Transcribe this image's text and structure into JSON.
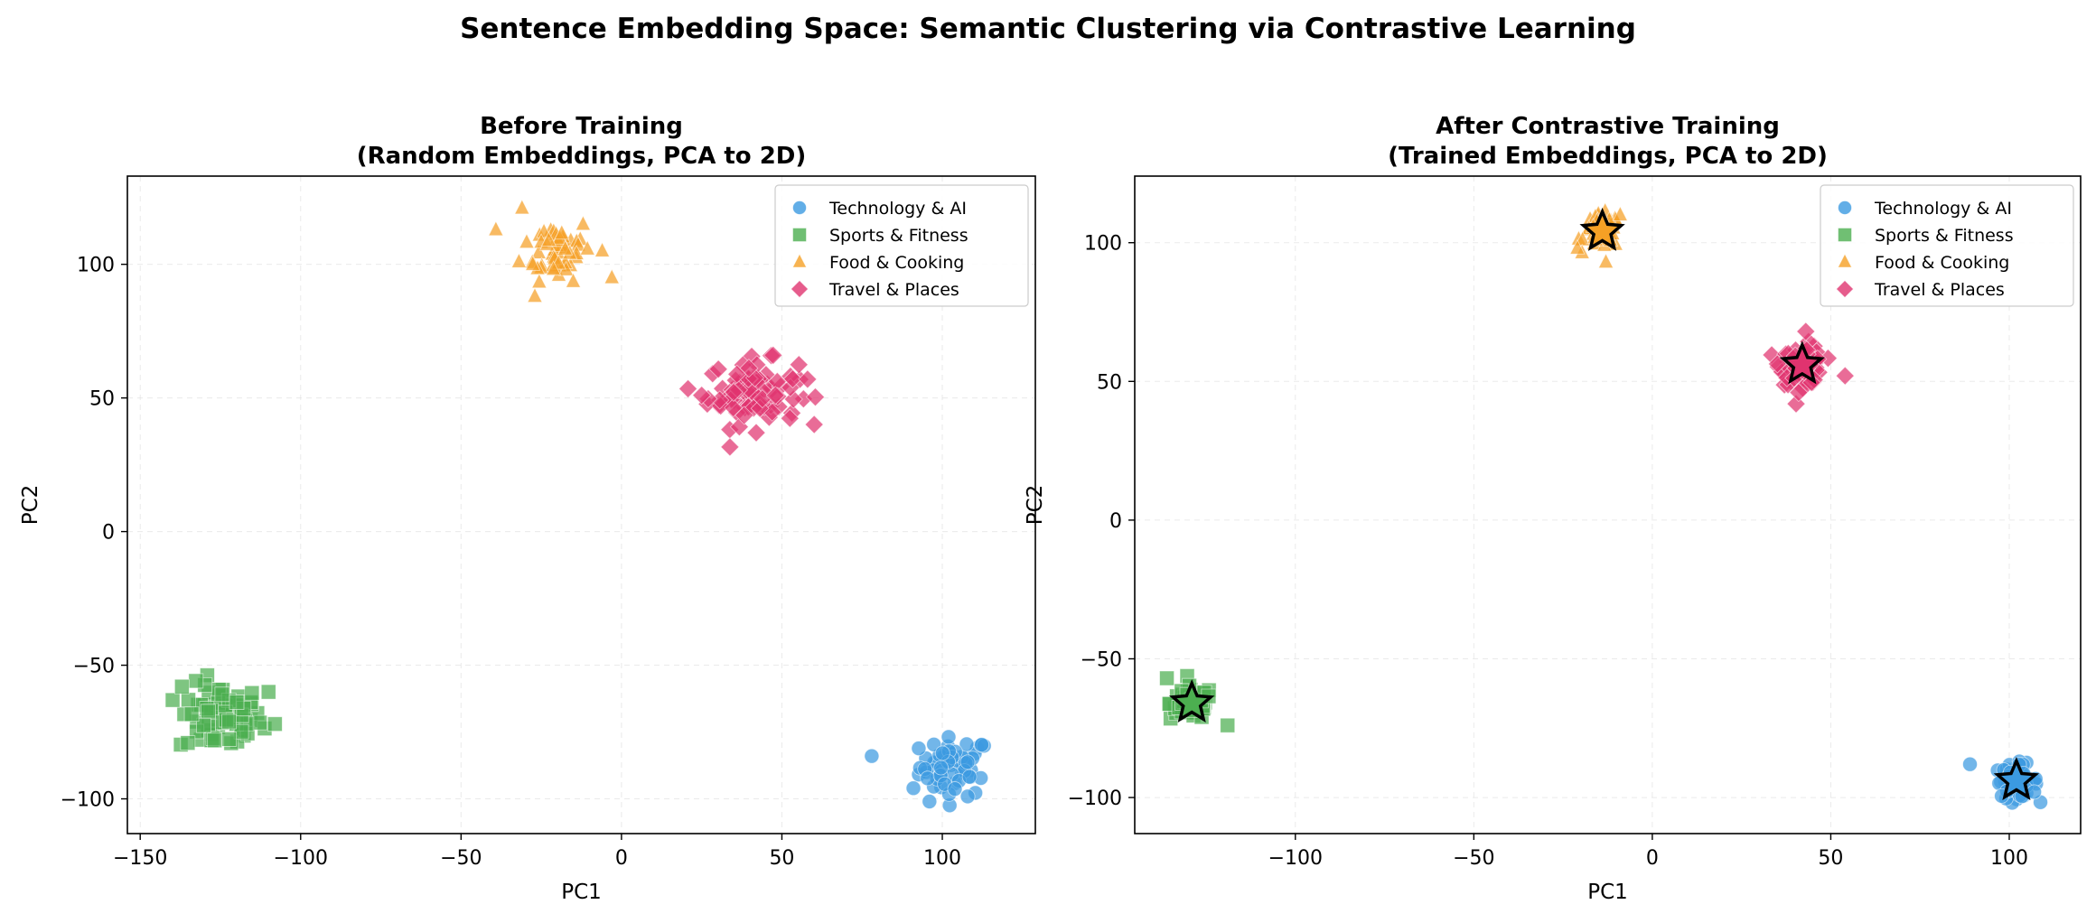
{
  "suptitle": "Sentence Embedding Space: Semantic Clustering via Contrastive Learning",
  "colors": {
    "Technology & AI": "#3b9ae1",
    "Sports & Fitness": "#4caf50",
    "Food & Cooking": "#f5a025",
    "Travel & Places": "#e0336f"
  },
  "chart_data": [
    {
      "type": "scatter",
      "title_line1": "Before Training",
      "title_line2": "(Random Embeddings, PCA to 2D)",
      "xlabel": "PC1",
      "ylabel": "PC2",
      "xlim": [
        -154,
        129
      ],
      "ylim": [
        -113,
        133
      ],
      "xticks": [
        -150,
        -100,
        -50,
        0,
        50,
        100
      ],
      "yticks": [
        -100,
        -50,
        0,
        50,
        100
      ],
      "grid": true,
      "legend_position": "top-right",
      "series": [
        {
          "name": "Technology & AI",
          "marker": "circle",
          "center": [
            104,
            -88
          ],
          "spread": [
            5.5,
            5.5
          ],
          "outliers": [
            [
              78,
              -84
            ],
            [
              91,
              -96
            ],
            [
              96,
              -101
            ]
          ],
          "n": 60
        },
        {
          "name": "Sports & Fitness",
          "marker": "square",
          "center": [
            -125,
            -70
          ],
          "spread": [
            6.5,
            6.5
          ],
          "outliers": [
            [
              -110,
              -60
            ],
            [
              -108,
              -72
            ],
            [
              -137,
              -58
            ]
          ],
          "n": 70
        },
        {
          "name": "Food & Cooking",
          "marker": "triangle",
          "center": [
            -20,
            106
          ],
          "spread": [
            5.5,
            6
          ],
          "outliers": [
            [
              -31,
              121
            ],
            [
              -27,
              88
            ],
            [
              -6,
              105
            ],
            [
              -3,
              95
            ]
          ],
          "n": 55
        },
        {
          "name": "Travel & Places",
          "marker": "diamond",
          "center": [
            41,
            52
          ],
          "spread": [
            7,
            6
          ],
          "outliers": [
            [
              25,
              51
            ],
            [
              58,
              57
            ],
            [
              42,
              37
            ]
          ],
          "n": 80
        }
      ],
      "centroids": []
    },
    {
      "type": "scatter",
      "title_line1": "After Contrastive Training",
      "title_line2": "(Trained Embeddings, PCA to 2D)",
      "xlabel": "PC1",
      "ylabel": "PC2",
      "xlim": [
        -145,
        120
      ],
      "ylim": [
        -113,
        124
      ],
      "xticks": [
        -100,
        -50,
        0,
        50,
        100
      ],
      "yticks": [
        -100,
        -50,
        0,
        50,
        100
      ],
      "grid": true,
      "legend_position": "top-right",
      "series": [
        {
          "name": "Technology & AI",
          "marker": "circle",
          "center": [
            102,
            -94
          ],
          "spread": [
            3,
            3
          ],
          "outliers": [
            [
              89,
              -88
            ],
            [
              107,
              -98
            ]
          ],
          "n": 60
        },
        {
          "name": "Sports & Fitness",
          "marker": "square",
          "center": [
            -129,
            -66
          ],
          "spread": [
            3,
            3
          ],
          "outliers": [
            [
              -119,
              -74
            ],
            [
              -136,
              -57
            ]
          ],
          "n": 70
        },
        {
          "name": "Food & Cooking",
          "marker": "triangle",
          "center": [
            -14,
            104
          ],
          "spread": [
            2.5,
            3
          ],
          "outliers": [
            [
              -21,
              98
            ],
            [
              -13,
              93
            ],
            [
              -9,
              110
            ]
          ],
          "n": 55
        },
        {
          "name": "Travel & Places",
          "marker": "diamond",
          "center": [
            42,
            56
          ],
          "spread": [
            3,
            3.5
          ],
          "outliers": [
            [
              43,
              68
            ],
            [
              54,
              52
            ],
            [
              41,
              46
            ]
          ],
          "n": 80
        }
      ],
      "centroids": [
        [
          102,
          -94
        ],
        [
          -129,
          -66
        ],
        [
          -14,
          104
        ],
        [
          42,
          56
        ]
      ]
    }
  ]
}
